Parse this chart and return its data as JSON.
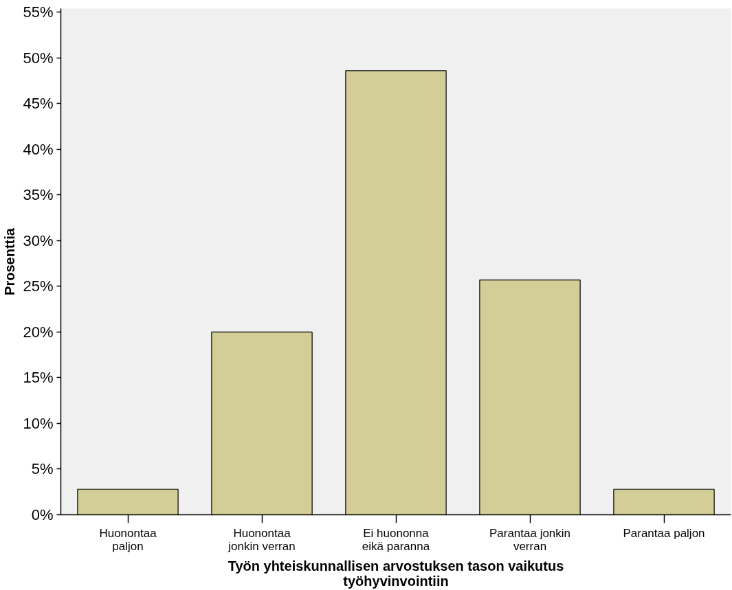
{
  "chart_data": {
    "type": "bar",
    "xlabel": "Työn yhteiskunnallisen arvostuksen tason vaikutus työhyvinvointiin",
    "ylabel": "Prosenttia",
    "categories": [
      "Huonontaa paljon",
      "Huonontaa jonkin verran",
      "Ei huononna eikä paranna",
      "Parantaa jonkin verran",
      "Parantaa paljon"
    ],
    "values": [
      2.8,
      20.0,
      48.6,
      25.7,
      2.8
    ],
    "color": "#d3ce97",
    "ylim": [
      0,
      55.4
    ],
    "yticks": [
      {
        "value": 0,
        "label": "0%"
      },
      {
        "value": 5,
        "label": "5%"
      },
      {
        "value": 10,
        "label": "10%"
      },
      {
        "value": 15,
        "label": "15%"
      },
      {
        "value": 20,
        "label": "20%"
      },
      {
        "value": 25,
        "label": "25%"
      },
      {
        "value": 30,
        "label": "30%"
      },
      {
        "value": 35,
        "label": "35%"
      },
      {
        "value": 40,
        "label": "40%"
      },
      {
        "value": 45,
        "label": "45%"
      },
      {
        "value": 50,
        "label": "50%"
      },
      {
        "value": 55,
        "label": "55%"
      }
    ],
    "grid": false
  }
}
